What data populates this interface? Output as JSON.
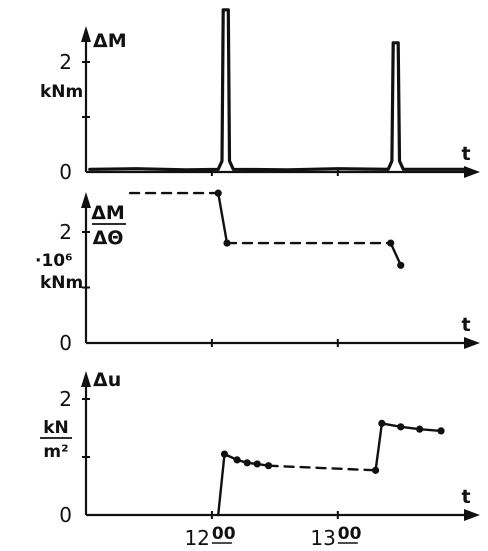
{
  "chart_data": [
    {
      "type": "line",
      "ylabel": "ΔM",
      "yunit": "kNm",
      "xlabel": "t",
      "yticks": [
        {
          "value": 0,
          "label": "0"
        },
        {
          "value": 2,
          "label": "2"
        }
      ],
      "ylim": [
        0,
        3.1
      ],
      "xlim": [
        11.0,
        14.05
      ],
      "series": [
        {
          "style": "solid",
          "points": [
            [
              11.03,
              0.05
            ],
            [
              11.4,
              0.06
            ],
            [
              11.8,
              0.04
            ],
            [
              12.05,
              0.05
            ],
            [
              12.08,
              0.2
            ],
            [
              12.09,
              2.95
            ],
            [
              12.13,
              2.95
            ],
            [
              12.14,
              0.2
            ],
            [
              12.17,
              0.05
            ],
            [
              12.6,
              0.04
            ],
            [
              13.0,
              0.06
            ],
            [
              13.4,
              0.05
            ],
            [
              13.43,
              0.2
            ],
            [
              13.44,
              2.35
            ],
            [
              13.48,
              2.35
            ],
            [
              13.49,
              0.2
            ],
            [
              13.52,
              0.05
            ],
            [
              13.8,
              0.05
            ],
            [
              14.0,
              0.05
            ]
          ]
        }
      ]
    },
    {
      "type": "line",
      "ylabel_num": "ΔM",
      "ylabel_den": "ΔΘ",
      "yunit_scale": "·10⁶",
      "yunit": "kNm",
      "xlabel": "t",
      "yticks": [
        {
          "value": 0,
          "label": "0"
        },
        {
          "value": 2,
          "label": "2"
        }
      ],
      "ylim": [
        0,
        3.1
      ],
      "xlim": [
        11.0,
        14.05
      ],
      "series": [
        {
          "style": "dashed",
          "points": [
            [
              11.35,
              2.7
            ],
            [
              12.05,
              2.7
            ]
          ]
        },
        {
          "style": "solid",
          "points": [
            [
              12.05,
              2.7
            ],
            [
              12.12,
              1.8
            ]
          ]
        },
        {
          "style": "dashed",
          "points": [
            [
              12.12,
              1.8
            ],
            [
              13.42,
              1.8
            ]
          ]
        },
        {
          "style": "solid",
          "points": [
            [
              13.42,
              1.8
            ],
            [
              13.5,
              1.4
            ]
          ]
        }
      ],
      "markers": [
        [
          12.05,
          2.7
        ],
        [
          12.12,
          1.8
        ],
        [
          13.42,
          1.8
        ],
        [
          13.5,
          1.4
        ]
      ]
    },
    {
      "type": "line",
      "ylabel": "Δu",
      "yunit_num": "kN",
      "yunit_den": "m²",
      "xlabel": "t",
      "yticks": [
        {
          "value": 0,
          "label": "0"
        },
        {
          "value": 2,
          "label": "2"
        }
      ],
      "ylim": [
        0,
        3.1
      ],
      "xlim": [
        11.0,
        14.05
      ],
      "xticks": [
        {
          "value": 12.0,
          "label": "12",
          "sup": "00"
        },
        {
          "value": 13.0,
          "label": "13",
          "sup": "00"
        }
      ],
      "series": [
        {
          "style": "solid",
          "points": [
            [
              12.05,
              0.0
            ],
            [
              12.1,
              1.05
            ]
          ]
        },
        {
          "style": "solid",
          "points": [
            [
              12.1,
              1.05
            ],
            [
              12.2,
              0.95
            ],
            [
              12.28,
              0.9
            ],
            [
              12.36,
              0.88
            ],
            [
              12.45,
              0.85
            ]
          ]
        },
        {
          "style": "dashed",
          "points": [
            [
              12.45,
              0.85
            ],
            [
              13.3,
              0.77
            ]
          ]
        },
        {
          "style": "solid",
          "points": [
            [
              13.3,
              0.77
            ],
            [
              13.35,
              1.58
            ]
          ]
        },
        {
          "style": "solid",
          "points": [
            [
              13.35,
              1.58
            ],
            [
              13.5,
              1.52
            ],
            [
              13.65,
              1.48
            ],
            [
              13.82,
              1.45
            ]
          ]
        }
      ],
      "markers": [
        [
          12.1,
          1.05
        ],
        [
          12.2,
          0.95
        ],
        [
          12.28,
          0.9
        ],
        [
          12.36,
          0.88
        ],
        [
          12.45,
          0.85
        ],
        [
          13.3,
          0.77
        ],
        [
          13.35,
          1.58
        ],
        [
          13.5,
          1.52
        ],
        [
          13.65,
          1.48
        ],
        [
          13.82,
          1.45
        ]
      ]
    }
  ]
}
